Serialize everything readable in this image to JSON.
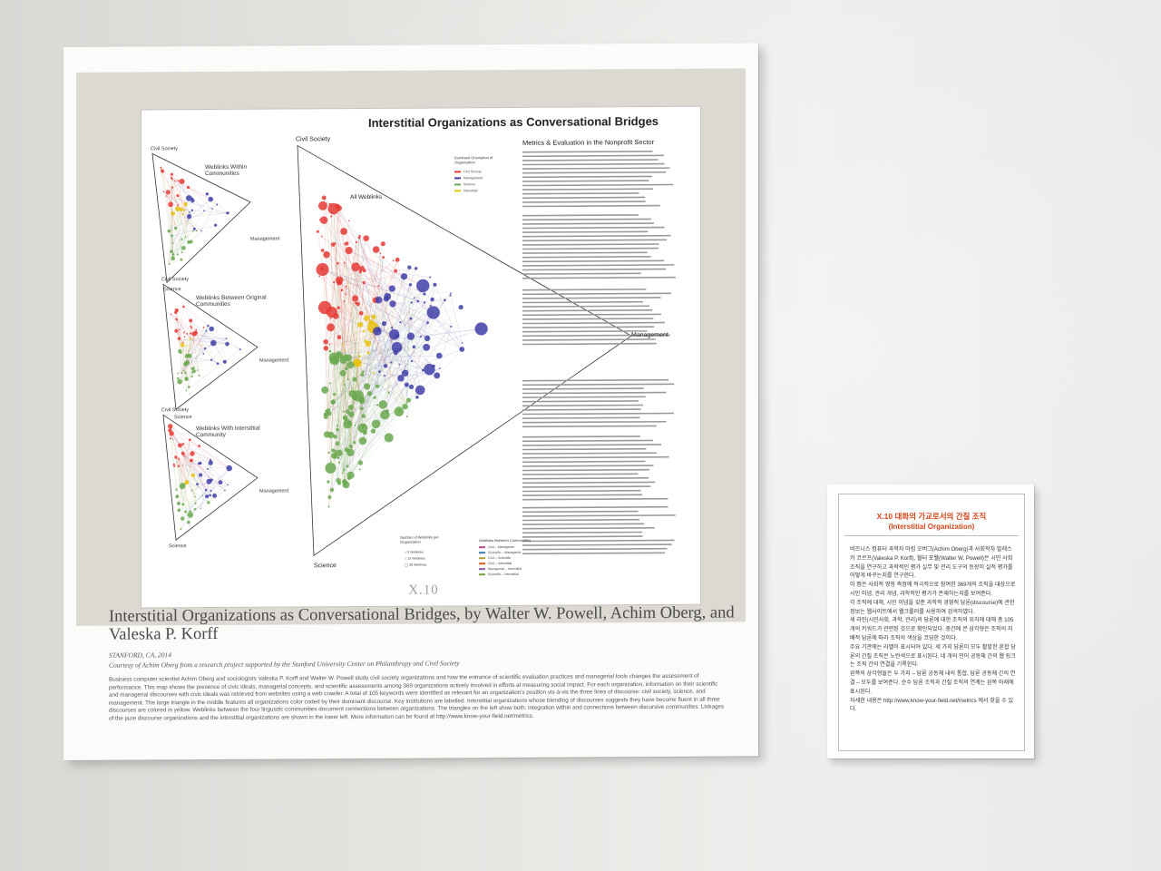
{
  "poster": {
    "title": "Interstitial Organizations as Conversational Bridges",
    "section_heading": "Metrics & Evaluation in the Nonprofit Sector",
    "vertex_labels": {
      "civil_society": "Civil Society",
      "management": "Management",
      "science": "Science"
    },
    "small_triangles": [
      {
        "title": "Weblinks Within Communities"
      },
      {
        "title": "Weblinks Between Original Communities"
      },
      {
        "title": "Weblinks With Interstitial Community"
      }
    ],
    "big_triangle_title": "All Weblinks",
    "orientation_legend": {
      "title": "Dominant Orientation of Organization",
      "items": [
        {
          "label": "Civil Society",
          "color": "#e53935"
        },
        {
          "label": "Management",
          "color": "#3f3fa8"
        },
        {
          "label": "Science",
          "color": "#6aa84f"
        },
        {
          "label": "Interstitial",
          "color": "#e8c20e"
        }
      ]
    },
    "size_legend": {
      "title": "Number of Weblinks per Organization",
      "items": [
        "0 Weblinks",
        "15 Weblinks",
        "30 Weblinks"
      ]
    },
    "link_legend": {
      "title": "Weblinks Between Communities",
      "items": [
        {
          "label": "Civil – Managerial",
          "color": "#c04a8a"
        },
        {
          "label": "Scientific – Managerial",
          "color": "#3a7ab0"
        },
        {
          "label": "Civil – Scientific",
          "color": "#b8a040"
        },
        {
          "label": "Civil – Interstitial",
          "color": "#e55a2a"
        },
        {
          "label": "Managerial – Interstitial",
          "color": "#8a5aa0"
        },
        {
          "label": "Scientific – Interstitial",
          "color": "#7aa040"
        }
      ]
    }
  },
  "plate_id": "X.10",
  "caption": {
    "title": "Interstitial Organizations as Conversational Bridges, by Walter W. Powell, Achim Oberg, and Valeska P. Korff",
    "location": "STANFORD, CA, 2014",
    "courtesy": "Courtesy of Achim Oberg from a research project supported by the Stanford University Center on Philanthropy and Civil Society",
    "body": "Business computer scientist Achim Oberg and sociologists Valeska P. Korff and Walter W. Powell study civil society organizations and how the entrance of scientific evaluation practices and managerial tools changes the assessment of performance. This map shows the presence of civic ideals, managerial concepts, and scientific assessments among 369 organizations actively involved in efforts at measuring social impact. For each organization, information on their scientific and managerial discourses with civic ideals was retrieved from websites using a web crawler. A total of 105 keywords were identified as relevant for an organization's position vis-à-vis the three lines of discourse: civil society, science, and management. The large triangle in the middle features all organizations color coded by their dominant discourse. Key institutions are labelled. Interstitial organizations whose blending of discourses suggests they have become fluent in all three discourses are colored in yellow. Weblinks between the four linguistic communities document connections between organizations. The triangles on the left show both: integration within and connections between discursive communities. Linkages of the pure discourse organizations and the interstitial organizations are shown in the lower left. More information can be found at http://www.know-your-field.net/metrics."
  },
  "label": {
    "title": "X.10 대화의 가교로서의 간질 조직",
    "subtitle": "(Interstitial Organization)",
    "paragraphs": [
      "비즈니스 컴퓨터 과학자 아킴 오버그(Achim Oberg)과 사회학자 발레스카 코르프(Valeska P. Korff), 월터 포웰(Walter W. Powell)은 시민 사회 조직을 연구하고 과학적인 평가 실무 및 관리 도구의 등장이 실적 평가를 어떻게 바꾸는지를 연구한다.",
      "이 맵은 사회적 영향 측정에 적극적으로 참여한 369개의 조직을 대상으로 시민 이념, 관리 개념, 과학적인 평가가 존재하는지를 보여준다.",
      "각 조직에 대해, 시민 이념을 갖춘 과학적 경영적 담론(discourse)에 관한 정보는 웹사이트에서 웹크롤러를 사용하여 검색하였다.",
      "세 라인(시민사회, 과학, 관리)의 담론에 대한 조직의 위치에 대해 총 105개의 키워드가 관련된 것으로 확인되었다. 중간에 큰 삼각형은 조직의 지배적 담론에 따라 조직의 색상을 코딩한 것이다.",
      "주요 기관에는 라벨이 표시되어 있다. 세 가지 담론이 모두 활발한 혼합 담론의 간질 조직은 노란색으로 표시된다. 네 개의 언어 공동체 간의 웹 링크는 조직 간의 연결을 기록한다.",
      "왼쪽의 삼각형들은 두 가지 – 담론 공동체 내의 통합, 담론 공동체 간의 연결 – 모두를 보여준다. 순수 담론 조직과 간질 조직의 연계는 왼쪽 아래에 표시된다.",
      "자세한 내용은 http://www.know-your-field.net/metrics 에서 찾을 수 있다."
    ]
  }
}
